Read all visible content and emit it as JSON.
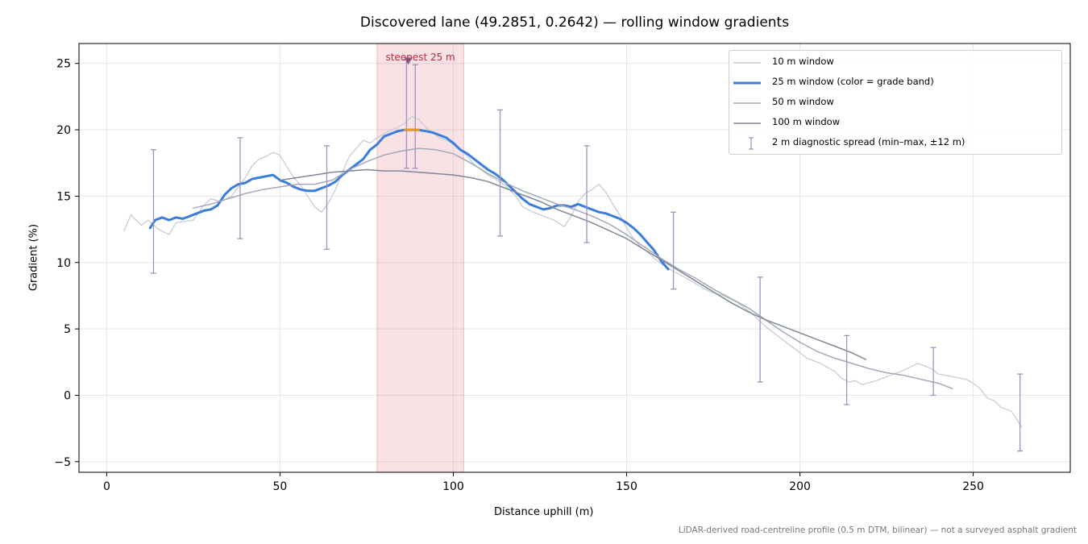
{
  "chart_data": {
    "type": "line",
    "title": "Discovered lane (49.2851, 0.2642) — rolling window gradients",
    "xlabel": "Distance uphill (m)",
    "ylabel": "Gradient (%)",
    "xlim": [
      -8,
      278
    ],
    "ylim": [
      -5.8,
      26.5
    ],
    "xticks": [
      0,
      50,
      100,
      150,
      200,
      250
    ],
    "yticks": [
      -5,
      0,
      5,
      10,
      15,
      20,
      25
    ],
    "grid": true,
    "legend_position": "top-right",
    "highlight": {
      "x_start": 78,
      "x_end": 103,
      "label": "steepest 25 m",
      "marker_x": 87,
      "marker_y": 25.2
    },
    "series": [
      {
        "name": "10 m window",
        "color": "#c8ccd6",
        "points": [
          [
            5,
            12.4
          ],
          [
            7,
            13.6
          ],
          [
            10,
            12.8
          ],
          [
            12,
            13.2
          ],
          [
            15,
            12.5
          ],
          [
            18,
            12.1
          ],
          [
            20,
            13.0
          ],
          [
            25,
            13.2
          ],
          [
            28,
            14.3
          ],
          [
            30,
            14.8
          ],
          [
            33,
            14.6
          ],
          [
            36,
            15.0
          ],
          [
            40,
            16.4
          ],
          [
            42,
            17.3
          ],
          [
            44,
            17.8
          ],
          [
            46,
            18.0
          ],
          [
            48,
            18.3
          ],
          [
            50,
            18.1
          ],
          [
            52,
            17.2
          ],
          [
            54,
            16.4
          ],
          [
            56,
            15.8
          ],
          [
            58,
            15.0
          ],
          [
            60,
            14.2
          ],
          [
            62,
            13.8
          ],
          [
            64,
            14.5
          ],
          [
            66,
            15.5
          ],
          [
            68,
            16.8
          ],
          [
            70,
            18.0
          ],
          [
            72,
            18.6
          ],
          [
            74,
            19.2
          ],
          [
            76,
            19.0
          ],
          [
            78,
            19.4
          ],
          [
            80,
            19.7
          ],
          [
            82,
            20.0
          ],
          [
            84,
            20.2
          ],
          [
            86,
            20.5
          ],
          [
            88,
            21.0
          ],
          [
            90,
            20.8
          ],
          [
            92,
            20.2
          ],
          [
            94,
            19.8
          ],
          [
            96,
            19.4
          ],
          [
            98,
            19.2
          ],
          [
            100,
            18.9
          ],
          [
            102,
            18.6
          ],
          [
            104,
            18.0
          ],
          [
            106,
            17.4
          ],
          [
            108,
            17.0
          ],
          [
            110,
            16.6
          ],
          [
            112,
            16.3
          ],
          [
            115,
            15.8
          ],
          [
            118,
            15.0
          ],
          [
            120,
            14.2
          ],
          [
            123,
            13.8
          ],
          [
            126,
            13.5
          ],
          [
            129,
            13.2
          ],
          [
            132,
            12.7
          ],
          [
            134,
            13.5
          ],
          [
            136,
            14.6
          ],
          [
            138,
            15.2
          ],
          [
            140,
            15.5
          ],
          [
            142,
            15.9
          ],
          [
            144,
            15.3
          ],
          [
            146,
            14.4
          ],
          [
            148,
            13.6
          ],
          [
            150,
            12.6
          ],
          [
            152,
            11.8
          ],
          [
            154,
            11.2
          ],
          [
            156,
            10.8
          ],
          [
            158,
            10.3
          ],
          [
            160,
            9.9
          ],
          [
            163,
            9.4
          ],
          [
            166,
            9.0
          ],
          [
            170,
            8.4
          ],
          [
            174,
            7.8
          ],
          [
            178,
            7.5
          ],
          [
            182,
            7.0
          ],
          [
            186,
            6.2
          ],
          [
            190,
            5.2
          ],
          [
            194,
            4.4
          ],
          [
            198,
            3.6
          ],
          [
            202,
            2.8
          ],
          [
            206,
            2.4
          ],
          [
            208,
            2.1
          ],
          [
            210,
            1.8
          ],
          [
            212,
            1.3
          ],
          [
            214,
            1.0
          ],
          [
            216,
            1.1
          ],
          [
            218,
            0.8
          ],
          [
            222,
            1.1
          ],
          [
            226,
            1.5
          ],
          [
            230,
            1.9
          ],
          [
            234,
            2.4
          ],
          [
            238,
            2.0
          ],
          [
            240,
            1.6
          ],
          [
            244,
            1.4
          ],
          [
            248,
            1.2
          ],
          [
            250,
            0.9
          ],
          [
            252,
            0.5
          ],
          [
            254,
            -0.2
          ],
          [
            256,
            -0.4
          ],
          [
            258,
            -0.9
          ],
          [
            261,
            -1.2
          ],
          [
            264,
            -2.4
          ]
        ]
      },
      {
        "name": "25 m window (color = grade band)",
        "color": "#3b7ddd",
        "highlight_color": "#f0950f",
        "points": [
          [
            12.5,
            12.6
          ],
          [
            14,
            13.2
          ],
          [
            16,
            13.4
          ],
          [
            18,
            13.2
          ],
          [
            20,
            13.4
          ],
          [
            22,
            13.3
          ],
          [
            24,
            13.5
          ],
          [
            26,
            13.7
          ],
          [
            28,
            13.9
          ],
          [
            30,
            14.0
          ],
          [
            32,
            14.3
          ],
          [
            34,
            15.1
          ],
          [
            36,
            15.6
          ],
          [
            38,
            15.9
          ],
          [
            40,
            16.0
          ],
          [
            42,
            16.3
          ],
          [
            44,
            16.4
          ],
          [
            46,
            16.5
          ],
          [
            48,
            16.6
          ],
          [
            50,
            16.2
          ],
          [
            52,
            16.0
          ],
          [
            54,
            15.7
          ],
          [
            56,
            15.5
          ],
          [
            58,
            15.4
          ],
          [
            60,
            15.4
          ],
          [
            62,
            15.6
          ],
          [
            64,
            15.8
          ],
          [
            66,
            16.1
          ],
          [
            68,
            16.6
          ],
          [
            70,
            17.0
          ],
          [
            72,
            17.4
          ],
          [
            74,
            17.8
          ],
          [
            76,
            18.5
          ],
          [
            78,
            18.9
          ],
          [
            80,
            19.5
          ],
          [
            82,
            19.7
          ],
          [
            84,
            19.9
          ],
          [
            86,
            20.0
          ],
          [
            88,
            20.0
          ],
          [
            90,
            20.0
          ],
          [
            92,
            19.9
          ],
          [
            94,
            19.8
          ],
          [
            96,
            19.6
          ],
          [
            98,
            19.4
          ],
          [
            100,
            19.0
          ],
          [
            102,
            18.5
          ],
          [
            104,
            18.2
          ],
          [
            106,
            17.8
          ],
          [
            108,
            17.4
          ],
          [
            110,
            17.0
          ],
          [
            112,
            16.7
          ],
          [
            114,
            16.3
          ],
          [
            116,
            15.8
          ],
          [
            118,
            15.3
          ],
          [
            120,
            14.8
          ],
          [
            122,
            14.4
          ],
          [
            124,
            14.2
          ],
          [
            126,
            14.0
          ],
          [
            128,
            14.1
          ],
          [
            130,
            14.3
          ],
          [
            132,
            14.3
          ],
          [
            134,
            14.2
          ],
          [
            136,
            14.4
          ],
          [
            138,
            14.2
          ],
          [
            140,
            14.0
          ],
          [
            142,
            13.8
          ],
          [
            144,
            13.7
          ],
          [
            146,
            13.5
          ],
          [
            148,
            13.3
          ],
          [
            150,
            13.0
          ],
          [
            152,
            12.6
          ],
          [
            154,
            12.1
          ],
          [
            156,
            11.5
          ],
          [
            158,
            10.9
          ],
          [
            160,
            10.1
          ],
          [
            162,
            9.5
          ]
        ],
        "highlight_points": [
          [
            86,
            20.0
          ],
          [
            88,
            20.0
          ],
          [
            90,
            20.0
          ]
        ]
      },
      {
        "name": "50 m window",
        "color": "#a2a8b7",
        "points": [
          [
            25,
            14.1
          ],
          [
            30,
            14.4
          ],
          [
            35,
            14.8
          ],
          [
            40,
            15.2
          ],
          [
            45,
            15.5
          ],
          [
            50,
            15.7
          ],
          [
            55,
            15.9
          ],
          [
            60,
            15.9
          ],
          [
            65,
            16.2
          ],
          [
            70,
            17.0
          ],
          [
            75,
            17.6
          ],
          [
            80,
            18.1
          ],
          [
            85,
            18.4
          ],
          [
            90,
            18.6
          ],
          [
            95,
            18.5
          ],
          [
            100,
            18.2
          ],
          [
            105,
            17.5
          ],
          [
            110,
            16.7
          ],
          [
            115,
            16.0
          ],
          [
            120,
            15.4
          ],
          [
            125,
            14.9
          ],
          [
            130,
            14.4
          ],
          [
            135,
            14.0
          ],
          [
            140,
            13.5
          ],
          [
            145,
            12.9
          ],
          [
            150,
            12.1
          ],
          [
            155,
            11.2
          ],
          [
            160,
            10.3
          ],
          [
            165,
            9.5
          ],
          [
            170,
            8.8
          ],
          [
            175,
            8.0
          ],
          [
            180,
            7.3
          ],
          [
            185,
            6.6
          ],
          [
            190,
            5.7
          ],
          [
            195,
            4.8
          ],
          [
            200,
            4.0
          ],
          [
            205,
            3.3
          ],
          [
            210,
            2.8
          ],
          [
            215,
            2.4
          ],
          [
            220,
            2.0
          ],
          [
            225,
            1.7
          ],
          [
            230,
            1.5
          ],
          [
            235,
            1.2
          ],
          [
            240,
            0.9
          ],
          [
            244,
            0.5
          ]
        ]
      },
      {
        "name": "100 m window",
        "color": "#7f8796",
        "points": [
          [
            50,
            16.2
          ],
          [
            55,
            16.4
          ],
          [
            60,
            16.6
          ],
          [
            65,
            16.8
          ],
          [
            70,
            16.9
          ],
          [
            75,
            17.0
          ],
          [
            80,
            16.9
          ],
          [
            85,
            16.9
          ],
          [
            90,
            16.8
          ],
          [
            95,
            16.7
          ],
          [
            100,
            16.6
          ],
          [
            105,
            16.4
          ],
          [
            110,
            16.1
          ],
          [
            115,
            15.6
          ],
          [
            120,
            15.1
          ],
          [
            125,
            14.6
          ],
          [
            130,
            14.0
          ],
          [
            135,
            13.5
          ],
          [
            140,
            13.0
          ],
          [
            145,
            12.4
          ],
          [
            150,
            11.8
          ],
          [
            155,
            11.0
          ],
          [
            160,
            10.2
          ],
          [
            165,
            9.4
          ],
          [
            170,
            8.6
          ],
          [
            175,
            7.8
          ],
          [
            180,
            7.0
          ],
          [
            185,
            6.3
          ],
          [
            190,
            5.7
          ],
          [
            195,
            5.2
          ],
          [
            200,
            4.7
          ],
          [
            205,
            4.2
          ],
          [
            210,
            3.7
          ],
          [
            215,
            3.2
          ],
          [
            219,
            2.7
          ]
        ]
      }
    ],
    "error_bars": {
      "name": "2 m diagnostic spread (min–max, ±12 m)",
      "color": "#9a95bb",
      "bars": [
        [
          13.5,
          9.2,
          18.5
        ],
        [
          38.5,
          11.8,
          19.4
        ],
        [
          63.5,
          11.0,
          18.8
        ],
        [
          86.5,
          17.1,
          25.3
        ],
        [
          89.0,
          17.1,
          24.9
        ],
        [
          113.5,
          12.0,
          21.5
        ],
        [
          138.5,
          11.5,
          18.8
        ],
        [
          163.5,
          8.0,
          13.8
        ],
        [
          188.5,
          1.0,
          8.9
        ],
        [
          213.5,
          -0.7,
          4.5
        ],
        [
          238.5,
          0.0,
          3.6
        ],
        [
          263.5,
          -4.2,
          1.6
        ]
      ]
    }
  },
  "footnote": "LiDAR-derived road-centreline profile (0.5 m DTM, bilinear) — not a surveyed asphalt gradient"
}
